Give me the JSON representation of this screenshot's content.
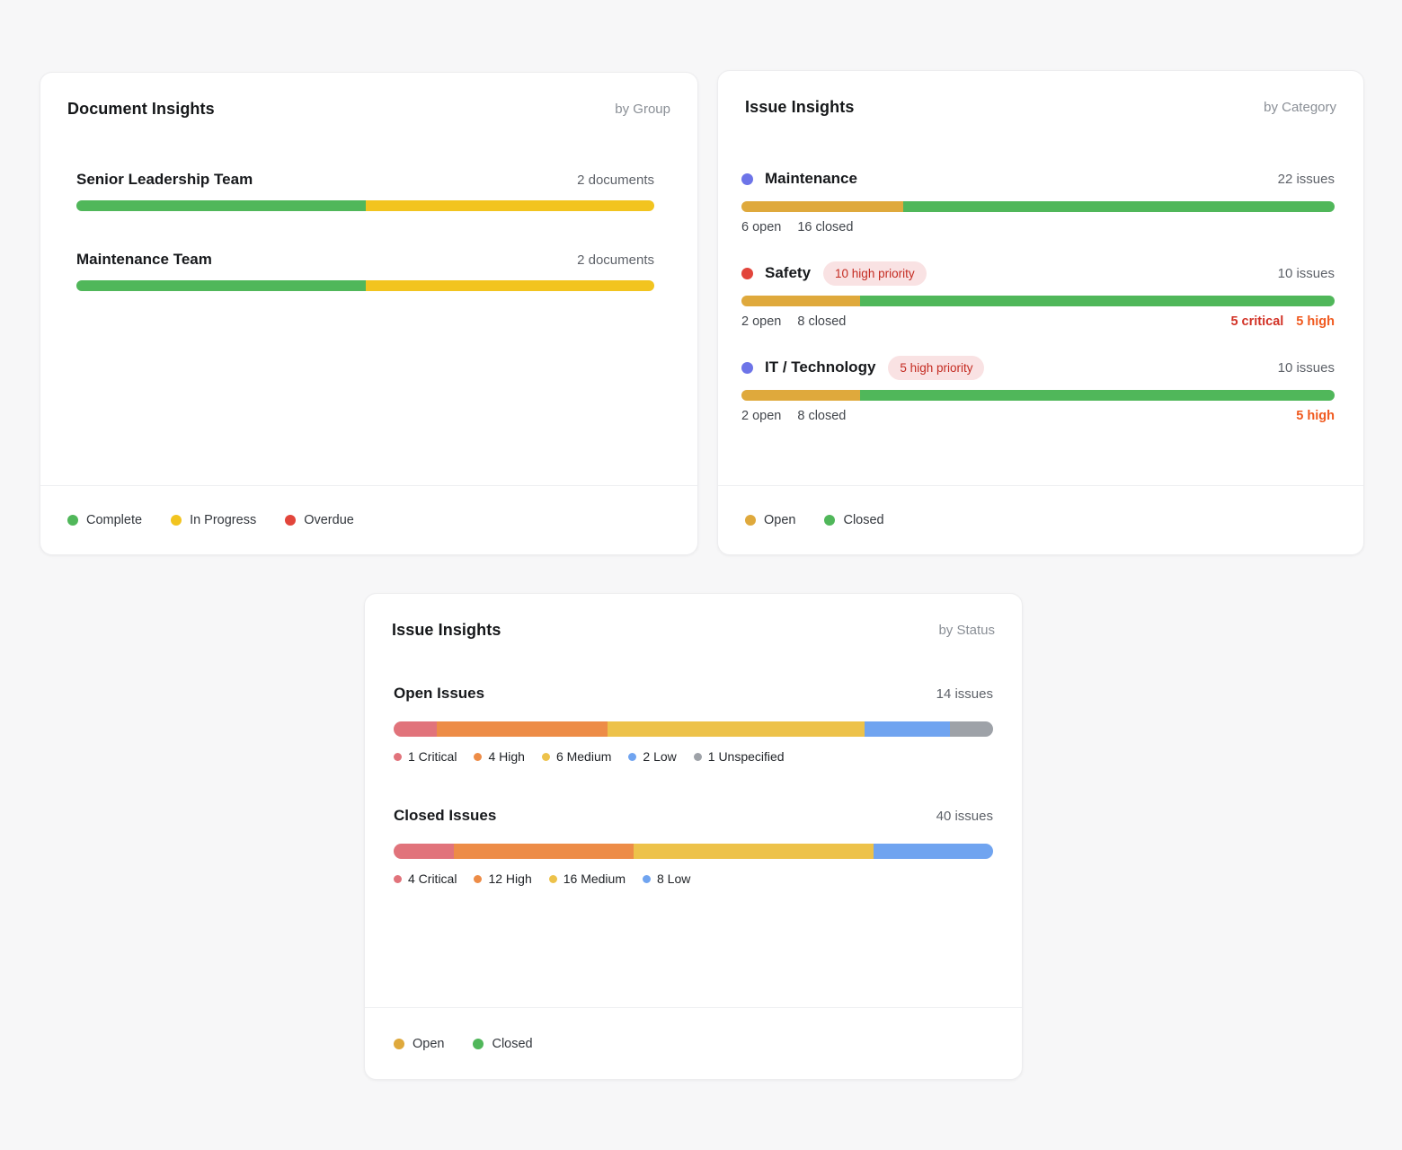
{
  "palette": {
    "green": "#50B75A",
    "bright_yellow": "#F2C41F",
    "amber": "#DFA93C",
    "red": "#E2453B",
    "indigo_dot": "#6D74E8",
    "salmon": "#E1737B",
    "orange": "#ED8C47",
    "medium_yellow": "#EDC24A",
    "blue": "#70A4F0",
    "gray": "#9EA2A8",
    "critical_text": "#D23327",
    "high_text": "#F0591E"
  },
  "doc_card": {
    "title": "Document Insights",
    "by": "by Group",
    "rows": [
      {
        "name": "Senior Leadership Team",
        "count": "2 documents",
        "segments": [
          {
            "label": "Complete",
            "pct": 50,
            "color": "#50B75A"
          },
          {
            "label": "In Progress",
            "pct": 50,
            "color": "#F2C41F"
          }
        ]
      },
      {
        "name": "Maintenance Team",
        "count": "2 documents",
        "segments": [
          {
            "label": "Complete",
            "pct": 50,
            "color": "#50B75A"
          },
          {
            "label": "In Progress",
            "pct": 50,
            "color": "#F2C41F"
          }
        ]
      }
    ],
    "legend": [
      {
        "label": "Complete",
        "color": "#50B75A"
      },
      {
        "label": "In Progress",
        "color": "#F2C41F"
      },
      {
        "label": "Overdue",
        "color": "#E2453B"
      }
    ]
  },
  "cat_card": {
    "title": "Issue Insights",
    "by": "by Category",
    "rows": [
      {
        "dot_color": "#6D74E8",
        "name": "Maintenance",
        "count": "22 issues",
        "open": "6 open",
        "closed": "16 closed",
        "segments": [
          {
            "label": "Open",
            "pct": 27.3,
            "color": "#DFA93C"
          },
          {
            "label": "Closed",
            "pct": 72.7,
            "color": "#50B75A"
          }
        ]
      },
      {
        "dot_color": "#E2453B",
        "name": "Safety",
        "badge": "10 high priority",
        "count": "10 issues",
        "open": "2 open",
        "closed": "8 closed",
        "critical": "5 critical",
        "high": "5 high",
        "segments": [
          {
            "label": "Open",
            "pct": 20,
            "color": "#DFA93C"
          },
          {
            "label": "Closed",
            "pct": 80,
            "color": "#50B75A"
          }
        ]
      },
      {
        "dot_color": "#6D74E8",
        "name": "IT / Technology",
        "badge": "5 high priority",
        "count": "10 issues",
        "open": "2 open",
        "closed": "8 closed",
        "high": "5 high",
        "segments": [
          {
            "label": "Open",
            "pct": 20,
            "color": "#DFA93C"
          },
          {
            "label": "Closed",
            "pct": 80,
            "color": "#50B75A"
          }
        ]
      }
    ],
    "legend": [
      {
        "label": "Open",
        "color": "#DFA93C"
      },
      {
        "label": "Closed",
        "color": "#50B75A"
      }
    ]
  },
  "status_card": {
    "title": "Issue Insights",
    "by": "by Status",
    "sections": [
      {
        "name": "Open Issues",
        "count": "14 issues",
        "segments": [
          {
            "label": "1 Critical",
            "pct": 7.14,
            "color": "#E1737B"
          },
          {
            "label": "4 High",
            "pct": 28.57,
            "color": "#ED8C47"
          },
          {
            "label": "6 Medium",
            "pct": 42.86,
            "color": "#EDC24A"
          },
          {
            "label": "2 Low",
            "pct": 14.29,
            "color": "#70A4F0"
          },
          {
            "label": "1 Unspecified",
            "pct": 7.14,
            "color": "#9EA2A8"
          }
        ]
      },
      {
        "name": "Closed Issues",
        "count": "40 issues",
        "segments": [
          {
            "label": "4 Critical",
            "pct": 10,
            "color": "#E1737B"
          },
          {
            "label": "12 High",
            "pct": 30,
            "color": "#ED8C47"
          },
          {
            "label": "16 Medium",
            "pct": 40,
            "color": "#EDC24A"
          },
          {
            "label": "8 Low",
            "pct": 20,
            "color": "#70A4F0"
          }
        ]
      }
    ],
    "legend": [
      {
        "label": "Open",
        "color": "#DFA93C"
      },
      {
        "label": "Closed",
        "color": "#50B75A"
      }
    ]
  },
  "chart_data": [
    {
      "type": "bar",
      "title": "Document Insights by Group",
      "orientation": "horizontal-stacked-100pct",
      "categories": [
        "Senior Leadership Team",
        "Maintenance Team"
      ],
      "category_totals": [
        "2 documents",
        "2 documents"
      ],
      "series": [
        {
          "name": "Complete",
          "values": [
            1,
            1
          ],
          "color": "#50B75A"
        },
        {
          "name": "In Progress",
          "values": [
            1,
            1
          ],
          "color": "#F2C41F"
        },
        {
          "name": "Overdue",
          "values": [
            0,
            0
          ],
          "color": "#E2453B"
        }
      ],
      "legend_position": "bottom"
    },
    {
      "type": "bar",
      "title": "Issue Insights by Category",
      "orientation": "horizontal-stacked-100pct",
      "categories": [
        "Maintenance",
        "Safety",
        "IT / Technology"
      ],
      "category_totals": [
        "22 issues",
        "10 issues",
        "10 issues"
      ],
      "series": [
        {
          "name": "Open",
          "values": [
            6,
            2,
            2
          ],
          "color": "#DFA93C"
        },
        {
          "name": "Closed",
          "values": [
            16,
            8,
            8
          ],
          "color": "#50B75A"
        }
      ],
      "annotations": [
        {
          "category": "Safety",
          "badge": "10 high priority",
          "critical": 5,
          "high": 5
        },
        {
          "category": "IT / Technology",
          "badge": "5 high priority",
          "high": 5
        }
      ],
      "legend_position": "bottom"
    },
    {
      "type": "bar",
      "title": "Issue Insights by Status",
      "orientation": "horizontal-stacked-100pct",
      "categories": [
        "Open Issues",
        "Closed Issues"
      ],
      "category_totals": [
        "14 issues",
        "40 issues"
      ],
      "series": [
        {
          "name": "Critical",
          "values": [
            1,
            4
          ],
          "color": "#E1737B"
        },
        {
          "name": "High",
          "values": [
            4,
            12
          ],
          "color": "#ED8C47"
        },
        {
          "name": "Medium",
          "values": [
            6,
            16
          ],
          "color": "#EDC24A"
        },
        {
          "name": "Low",
          "values": [
            2,
            8
          ],
          "color": "#70A4F0"
        },
        {
          "name": "Unspecified",
          "values": [
            1,
            0
          ],
          "color": "#9EA2A8"
        }
      ],
      "legend_position": "bottom"
    }
  ]
}
